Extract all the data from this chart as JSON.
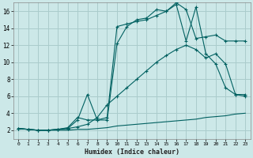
{
  "xlabel": "Humidex (Indice chaleur)",
  "bg_color": "#cce8e8",
  "grid_color": "#aacccc",
  "line_color": "#006060",
  "xlim": [
    -0.5,
    23.5
  ],
  "ylim": [
    1,
    17
  ],
  "xticks": [
    0,
    1,
    2,
    3,
    4,
    5,
    6,
    7,
    8,
    9,
    10,
    11,
    12,
    13,
    14,
    15,
    16,
    17,
    18,
    19,
    20,
    21,
    22,
    23
  ],
  "yticks": [
    2,
    4,
    6,
    8,
    10,
    12,
    14,
    16
  ],
  "curve1_x": [
    0,
    1,
    2,
    3,
    4,
    5,
    6,
    7,
    8,
    9,
    10,
    11,
    12,
    13,
    14,
    15,
    16,
    17,
    18,
    19,
    20,
    21,
    22,
    23
  ],
  "curve1_y": [
    2.2,
    2.1,
    2.0,
    2.0,
    2.0,
    2.0,
    2.1,
    2.1,
    2.2,
    2.3,
    2.5,
    2.6,
    2.7,
    2.8,
    2.9,
    3.0,
    3.1,
    3.2,
    3.3,
    3.5,
    3.6,
    3.7,
    3.9,
    4.0
  ],
  "curve2_x": [
    0,
    1,
    2,
    3,
    4,
    5,
    6,
    7,
    8,
    9,
    10,
    11,
    12,
    13,
    14,
    15,
    16,
    17,
    18,
    19,
    20,
    21,
    22,
    23
  ],
  "curve2_y": [
    2.2,
    2.1,
    2.0,
    2.0,
    2.1,
    2.2,
    2.4,
    2.7,
    3.5,
    5.0,
    6.0,
    7.0,
    8.0,
    9.0,
    10.0,
    10.8,
    11.5,
    12.0,
    11.5,
    10.5,
    11.0,
    9.8,
    6.2,
    6.2
  ],
  "curve3_x": [
    0,
    1,
    2,
    3,
    4,
    5,
    6,
    7,
    8,
    9,
    10,
    11,
    12,
    13,
    14,
    15,
    16,
    17,
    18,
    19,
    20,
    21,
    22,
    23
  ],
  "curve3_y": [
    2.2,
    2.1,
    2.0,
    2.0,
    2.1,
    2.2,
    3.2,
    6.2,
    3.2,
    3.2,
    12.2,
    14.2,
    15.0,
    15.2,
    16.2,
    16.0,
    17.0,
    16.2,
    12.8,
    13.0,
    13.2,
    12.5,
    12.5,
    12.5
  ],
  "curve4_x": [
    0,
    1,
    2,
    3,
    4,
    5,
    6,
    7,
    8,
    9,
    10,
    11,
    12,
    13,
    14,
    15,
    16,
    17,
    18,
    19,
    20,
    21,
    22,
    23
  ],
  "curve4_y": [
    2.2,
    2.1,
    2.0,
    2.0,
    2.1,
    2.3,
    3.5,
    3.2,
    3.2,
    3.5,
    14.2,
    14.5,
    14.8,
    15.0,
    15.5,
    16.0,
    16.8,
    12.5,
    16.5,
    11.0,
    9.8,
    7.0,
    6.2,
    6.0
  ]
}
